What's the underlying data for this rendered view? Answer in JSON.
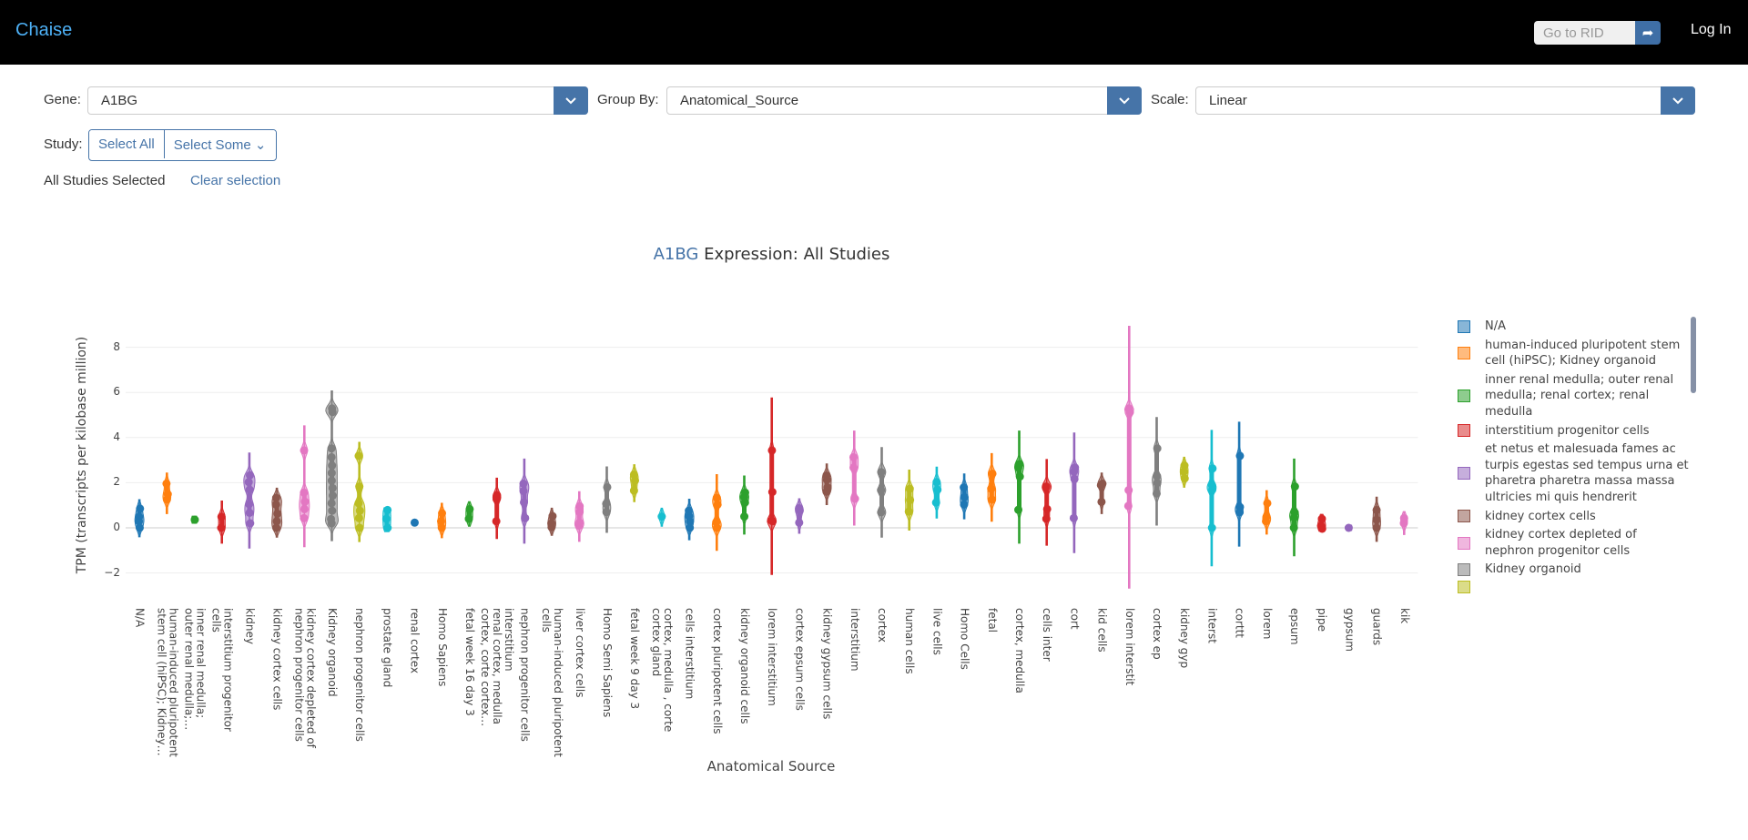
{
  "nav": {
    "brand": "Chaise",
    "rid_placeholder": "Go to RID",
    "rid_icon": "share-arrow-icon",
    "login": "Log In"
  },
  "controls": {
    "gene_label": "Gene:",
    "gene_value": "A1BG",
    "group_label": "Group By:",
    "group_value": "Anatomical_Source",
    "scale_label": "Scale:",
    "scale_value": "Linear",
    "study_label": "Study:",
    "select_all": "Select All",
    "select_some": "Select Some",
    "status": "All Studies Selected",
    "clear": "Clear selection"
  },
  "colors": {
    "accent": "#4674a8",
    "brand": "#4db0f5"
  },
  "chart_data": {
    "type": "violin",
    "title_gene": "A1BG",
    "title_rest": " Expression: All Studies",
    "ylabel": "TPM (transcripts per kilobase million)",
    "xlabel": "Anatomical Source",
    "ylim": [
      -3.2,
      9.3
    ],
    "yticks": [
      -2,
      0,
      2,
      4,
      6,
      8
    ],
    "grid": true,
    "legend_position": "right",
    "palette": [
      "#1f77b4",
      "#ff7f0e",
      "#2ca02c",
      "#d62728",
      "#9467bd",
      "#8c564b",
      "#e377c2",
      "#7f7f7f",
      "#bcbd22",
      "#17becf"
    ],
    "categories": [
      {
        "label": "N/A",
        "min": -0.4,
        "max": 1.25,
        "points": [
          0,
          0.29,
          0.49,
          0.85
        ]
      },
      {
        "label": "human-induced pluripotent\nstem cell (hiPSC); Kidney…",
        "min": 0.63,
        "max": 2.43,
        "points": [
          1.25,
          1.49,
          1.96
        ]
      },
      {
        "label": "inner renal medulla;\nouter renal medulla;…",
        "min": 0.2,
        "max": 0.52,
        "points": [
          0.36
        ]
      },
      {
        "label": "interstitium progenitor\ncells",
        "min": -0.68,
        "max": 1.19,
        "points": [
          0,
          0.49
        ]
      },
      {
        "label": "kidney",
        "min": -0.9,
        "max": 3.32,
        "points": [
          0.2,
          0.67,
          1.05,
          1.69,
          2.03,
          2.33
        ]
      },
      {
        "label": "kidney cortex cells",
        "min": -0.41,
        "max": 1.76,
        "points": [
          0,
          0.29,
          0.63,
          1.03,
          1.33
        ]
      },
      {
        "label": "kidney cortex depleted of\nnephron progenitor cells",
        "min": -0.84,
        "max": 4.52,
        "points": [
          0.43,
          0.83,
          1.16,
          1.56,
          3.43
        ]
      },
      {
        "label": "Kidney organoid",
        "min": -0.57,
        "max": 6.07,
        "points": [
          0.2,
          0.39,
          0.76,
          1.09,
          1.43,
          1.76,
          2.09,
          2.43,
          2.76,
          3.13,
          3.52,
          5.13,
          5.29
        ]
      },
      {
        "label": "nephron progenitor cells",
        "min": -0.61,
        "max": 3.79,
        "points": [
          0,
          0.43,
          0.76,
          1.09,
          1.83,
          3.19
        ]
      },
      {
        "label": "prostate gland",
        "min": -0.17,
        "max": 0.89,
        "points": [
          0,
          0.4,
          0.79
        ]
      },
      {
        "label": "renal cortex",
        "min": 0.23,
        "max": 0.23,
        "points": [
          0.23
        ]
      },
      {
        "label": "Homo Sapiens",
        "min": -0.44,
        "max": 1.09,
        "points": [
          0,
          0.29,
          0.65
        ]
      },
      {
        "label": "fetal week 16 day 3",
        "min": 0.07,
        "max": 1.16,
        "points": [
          0.4,
          0.83
        ]
      },
      {
        "label": "interstitium\nrenal cortex, medulla\ncortex, corte cortex…",
        "min": -0.47,
        "max": 2.2,
        "points": [
          0.29,
          1.27,
          1.45
        ]
      },
      {
        "label": "nephron progenitor cells",
        "min": -0.68,
        "max": 3.05,
        "points": [
          0.43,
          1.13,
          1.63,
          1.96
        ]
      },
      {
        "label": "human-induced pluripotent\ncells",
        "min": -0.33,
        "max": 0.87,
        "points": [
          0.03,
          0.2,
          0.52
        ]
      },
      {
        "label": "liver cortex cells",
        "min": -0.6,
        "max": 1.6,
        "points": [
          0.1,
          0.23,
          0.7,
          0.96
        ]
      },
      {
        "label": "Homo Semi Sapiens",
        "min": -0.2,
        "max": 2.7,
        "points": [
          0.7,
          1.07,
          1.8
        ]
      },
      {
        "label": "fetal week 9 day 3",
        "min": 1.16,
        "max": 2.8,
        "points": [
          1.65,
          2.1,
          2.36
        ]
      },
      {
        "label": "cortex, medulla , corte\ncortex gland",
        "min": 0.07,
        "max": 0.87,
        "points": [
          0.5
        ]
      },
      {
        "label": "cells interstitium",
        "min": -0.53,
        "max": 1.27,
        "points": [
          0,
          0.28,
          0.52,
          0.76
        ]
      },
      {
        "label": "cortex pluripotent cells",
        "min": -1.0,
        "max": 2.36,
        "points": [
          0,
          0.25,
          1.03,
          1.33
        ]
      },
      {
        "label": "kidney organoid cells",
        "min": -0.28,
        "max": 2.3,
        "points": [
          0.5,
          1.12,
          1.36,
          1.56
        ]
      },
      {
        "label": "lorem interstitium",
        "min": -2.07,
        "max": 5.76,
        "points": [
          0.29,
          0.32,
          1.59,
          3.43
        ]
      },
      {
        "label": "cortex epsum cells",
        "min": -0.24,
        "max": 1.29,
        "points": [
          0.23,
          0.76,
          0.87
        ]
      },
      {
        "label": "kidney gypsum cells",
        "min": 1.03,
        "max": 2.83,
        "points": [
          1.6,
          1.79,
          2.13,
          2.32
        ]
      },
      {
        "label": "interstitium",
        "min": 0.12,
        "max": 4.29,
        "points": [
          1.29,
          2.67,
          3.13
        ]
      },
      {
        "label": "cortex",
        "min": -0.41,
        "max": 3.56,
        "points": [
          0.69,
          1.67,
          2.47
        ]
      },
      {
        "label": "human cells",
        "min": -0.1,
        "max": 2.56,
        "points": [
          0.72,
          1.23,
          1.73
        ]
      },
      {
        "label": "live cells",
        "min": 0.43,
        "max": 2.69,
        "points": [
          1.12,
          1.69,
          2.03
        ]
      },
      {
        "label": "Homo Cells",
        "min": 0.4,
        "max": 2.39,
        "points": [
          1.03,
          1.36,
          1.79
        ]
      },
      {
        "label": "fetal",
        "min": 0.29,
        "max": 3.29,
        "points": [
          1.25,
          1.73,
          2.4
        ]
      },
      {
        "label": "cortex, medulla",
        "min": -0.68,
        "max": 4.29,
        "points": [
          0.8,
          2.27,
          2.67,
          2.83
        ]
      },
      {
        "label": "cells inter",
        "min": -0.77,
        "max": 3.03,
        "points": [
          0.4,
          0.83,
          1.79,
          1.83
        ]
      },
      {
        "label": "cort",
        "min": -1.1,
        "max": 4.2,
        "points": [
          0.43,
          2.16,
          2.49,
          2.67
        ]
      },
      {
        "label": "kid cells",
        "min": 0.63,
        "max": 2.43,
        "points": [
          1.15,
          1.89,
          1.96
        ]
      },
      {
        "label": "lorem interstit",
        "min": -2.67,
        "max": 8.93,
        "points": [
          0.97,
          1.67,
          5.12,
          5.29
        ]
      },
      {
        "label": "cortex ep",
        "min": 0.12,
        "max": 4.89,
        "points": [
          1.52,
          1.99,
          2.29,
          3.52
        ]
      },
      {
        "label": "kidney gyp",
        "min": 1.8,
        "max": 3.13,
        "points": [
          2.19,
          2.49,
          2.76
        ]
      },
      {
        "label": "interst",
        "min": -1.68,
        "max": 4.32,
        "points": [
          0,
          1.69,
          1.88,
          2.63
        ]
      },
      {
        "label": "corttt",
        "min": -0.81,
        "max": 4.68,
        "points": [
          0.69,
          0.92,
          3.19
        ]
      },
      {
        "label": "lorem",
        "min": -0.28,
        "max": 1.65,
        "points": [
          0.29,
          0.49,
          1.09
        ]
      },
      {
        "label": "epsum",
        "min": -1.24,
        "max": 3.05,
        "points": [
          0,
          0.45,
          0.68,
          1.83
        ]
      },
      {
        "label": "pipe",
        "min": -0.15,
        "max": 0.6,
        "points": [
          -0.04,
          0.09,
          0.4
        ]
      },
      {
        "label": "gypsum",
        "min": -0.12,
        "max": 0.12,
        "points": [
          0
        ]
      },
      {
        "label": "guards",
        "min": -0.6,
        "max": 1.36,
        "points": [
          0,
          0.36,
          0.79
        ]
      },
      {
        "label": "kik",
        "min": -0.3,
        "max": 0.72,
        "points": [
          0.2,
          0.43
        ]
      }
    ],
    "legend": [
      {
        "name": "N/A"
      },
      {
        "name": "human-induced pluripotent stem cell (hiPSC); Kidney organoid"
      },
      {
        "name": "inner renal medulla; outer renal medulla; renal cortex; renal medulla"
      },
      {
        "name": "interstitium progenitor cells"
      },
      {
        "name": "et netus et malesuada fames ac turpis egestas sed tempus urna et pharetra pharetra massa massa ultricies mi quis hendrerit"
      },
      {
        "name": "kidney cortex cells"
      },
      {
        "name": "kidney cortex depleted of nephron progenitor cells"
      },
      {
        "name": "Kidney organoid"
      },
      {
        "name": ""
      }
    ]
  }
}
